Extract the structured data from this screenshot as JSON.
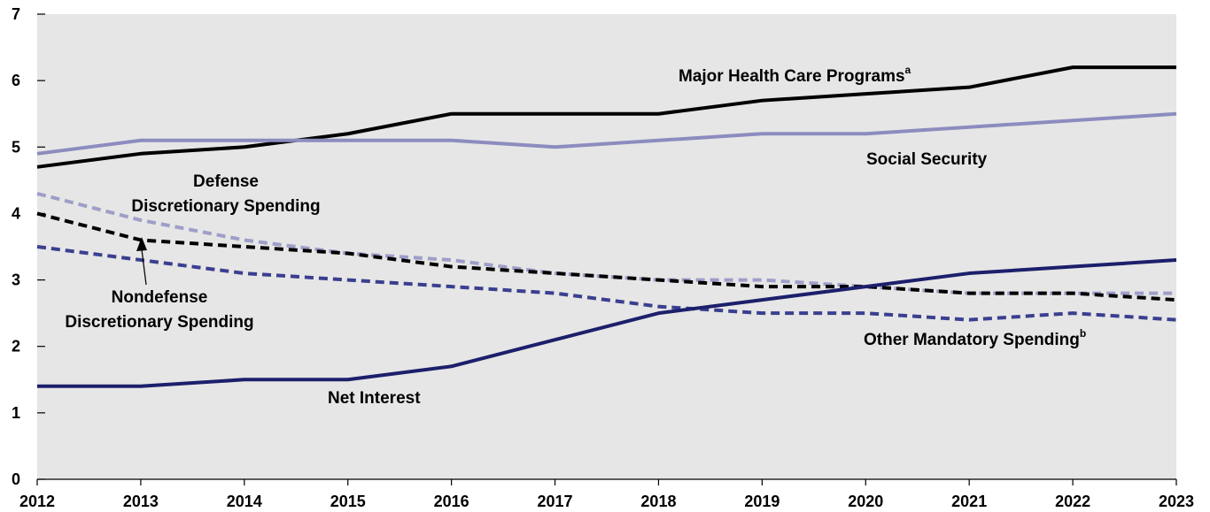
{
  "chart_data": {
    "type": "line",
    "title": "",
    "xlabel": "",
    "ylabel": "",
    "x": [
      2012,
      2013,
      2014,
      2015,
      2016,
      2017,
      2018,
      2019,
      2020,
      2021,
      2022,
      2023
    ],
    "xlim": [
      2012,
      2023
    ],
    "ylim": [
      0,
      7
    ],
    "yticks": [
      0,
      1,
      2,
      3,
      4,
      5,
      6,
      7
    ],
    "grid": false,
    "legend": "none",
    "background_color": "#e6e6e6",
    "series": [
      {
        "name": "Major Health Care Programs",
        "name_superscript": "a",
        "values": [
          4.7,
          4.9,
          5.0,
          5.2,
          5.5,
          5.5,
          5.5,
          5.7,
          5.8,
          5.9,
          6.2,
          6.2
        ],
        "color": "#000000",
        "dashed": false
      },
      {
        "name": "Social Security",
        "values": [
          4.9,
          5.1,
          5.1,
          5.1,
          5.1,
          5.0,
          5.1,
          5.2,
          5.2,
          5.3,
          5.4,
          5.5
        ],
        "color": "#8c8cbf",
        "dashed": false
      },
      {
        "name": "Defense Discretionary Spending",
        "name_lines": [
          "Defense",
          "Discretionary Spending"
        ],
        "values": [
          4.3,
          3.9,
          3.6,
          3.4,
          3.3,
          3.1,
          3.0,
          3.0,
          2.9,
          2.8,
          2.8,
          2.8
        ],
        "color": "#9e9ec9",
        "dashed": true
      },
      {
        "name": "Nondefense Discretionary Spending",
        "name_lines": [
          "Nondefense",
          "Discretionary Spending"
        ],
        "values": [
          4.0,
          3.6,
          3.5,
          3.4,
          3.2,
          3.1,
          3.0,
          2.9,
          2.9,
          2.8,
          2.8,
          2.7
        ],
        "color": "#000000",
        "dashed": true
      },
      {
        "name": "Other Mandatory Spending",
        "name_superscript": "b",
        "values": [
          3.5,
          3.3,
          3.1,
          3.0,
          2.9,
          2.8,
          2.6,
          2.5,
          2.5,
          2.4,
          2.5,
          2.4
        ],
        "color": "#3a3f8f",
        "dashed": true
      },
      {
        "name": "Net Interest",
        "values": [
          1.4,
          1.4,
          1.5,
          1.5,
          1.7,
          2.1,
          2.5,
          2.7,
          2.9,
          3.1,
          3.2,
          3.3
        ],
        "color": "#1c1f6b",
        "dashed": false
      }
    ]
  }
}
